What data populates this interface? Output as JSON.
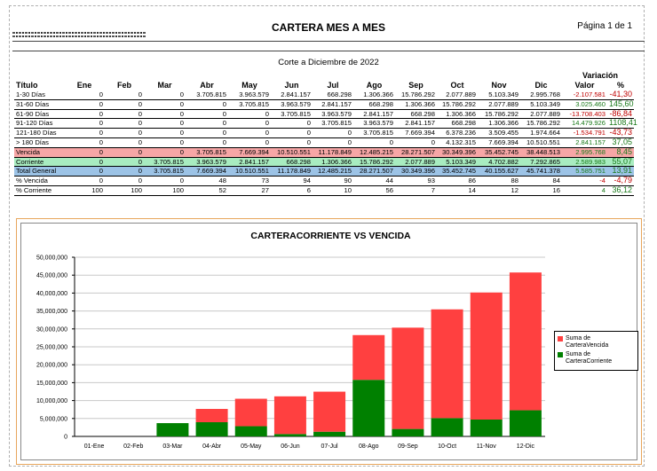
{
  "header": {
    "company_line1": "",
    "company_line2": "",
    "title": "CARTERA MES A MES",
    "page": "Página 1 de 1",
    "subtitle": "Corte a Diciembre de 2022"
  },
  "table": {
    "columns": [
      "Título",
      "Ene",
      "Feb",
      "Mar",
      "Abr",
      "May",
      "Jun",
      "Jul",
      "Ago",
      "Sep",
      "Oct",
      "Nov",
      "Dic",
      "Valor",
      "%"
    ],
    "variation_label": "Variación",
    "rows": [
      {
        "label": "1-30 Días",
        "cells": [
          "0",
          "0",
          "0",
          "3.705.815",
          "3.963.579",
          "2.841.157",
          "668.298",
          "1.306.366",
          "15.786.292",
          "2.077.889",
          "5.103.349",
          "2.995.768",
          "-2.107.581",
          "-41,30"
        ],
        "sign": "neg"
      },
      {
        "label": "31-60 Días",
        "cells": [
          "0",
          "0",
          "0",
          "0",
          "3.705.815",
          "3.963.579",
          "2.841.157",
          "668.298",
          "1.306.366",
          "15.786.292",
          "2.077.889",
          "5.103.349",
          "3.025.460",
          "145,60"
        ],
        "sign": "pos"
      },
      {
        "label": "61-90 Días",
        "cells": [
          "0",
          "0",
          "0",
          "0",
          "0",
          "3.705.815",
          "3.963.579",
          "2.841.157",
          "668.298",
          "1.306.366",
          "15.786.292",
          "2.077.889",
          "-13.708.403",
          "-86,84"
        ],
        "sign": "neg"
      },
      {
        "label": "91-120 Días",
        "cells": [
          "0",
          "0",
          "0",
          "0",
          "0",
          "0",
          "3.705.815",
          "3.963.579",
          "2.841.157",
          "668.298",
          "1.306.366",
          "15.786.292",
          "14.479.926",
          "1108,41"
        ],
        "sign": "pos"
      },
      {
        "label": "121-180 Días",
        "cells": [
          "0",
          "0",
          "0",
          "0",
          "0",
          "0",
          "0",
          "3.705.815",
          "7.669.394",
          "6.378.236",
          "3.509.455",
          "1.974.664",
          "-1.534.791",
          "-43,73"
        ],
        "sign": "neg"
      },
      {
        "label": "> 180 Días",
        "cells": [
          "0",
          "0",
          "0",
          "0",
          "0",
          "0",
          "0",
          "0",
          "0",
          "4.132.315",
          "7.669.394",
          "10.510.551",
          "2.841.157",
          "37,05"
        ],
        "sign": "pos"
      },
      {
        "label": "Vencida",
        "cells": [
          "0",
          "0",
          "0",
          "3.705.815",
          "7.669.394",
          "10.510.551",
          "11.178.849",
          "12.485.215",
          "28.271.507",
          "30.349.396",
          "35.452.745",
          "38.448.513",
          "2.995.768",
          "8,45"
        ],
        "sign": "pos",
        "cls": "r-venc"
      },
      {
        "label": "Corriente",
        "cells": [
          "0",
          "0",
          "3.705.815",
          "3.963.579",
          "2.841.157",
          "668.298",
          "1.306.366",
          "15.786.292",
          "2.077.889",
          "5.103.349",
          "4.702.882",
          "7.292.865",
          "2.589.983",
          "55,07"
        ],
        "sign": "pos",
        "cls": "r-corr"
      },
      {
        "label": "Total General",
        "cells": [
          "0",
          "0",
          "3.705.815",
          "7.669.394",
          "10.510.551",
          "11.178.849",
          "12.485.215",
          "28.271.507",
          "30.349.396",
          "35.452.745",
          "40.155.627",
          "45.741.378",
          "5.585.751",
          "13,91"
        ],
        "sign": "pos",
        "cls": "r-total"
      },
      {
        "label": "% Vencida",
        "cells": [
          "0",
          "0",
          "0",
          "48",
          "73",
          "94",
          "90",
          "44",
          "93",
          "86",
          "88",
          "84",
          "-4",
          "-4,79"
        ],
        "sign": "neg"
      },
      {
        "label": "% Corriente",
        "cells": [
          "100",
          "100",
          "100",
          "52",
          "27",
          "6",
          "10",
          "56",
          "7",
          "14",
          "12",
          "16",
          "4",
          "36,12"
        ],
        "sign": "pos"
      }
    ]
  },
  "chart_data": {
    "type": "bar",
    "stacked": true,
    "title": "CARTERACORRIENTE VS VENCIDA",
    "categories": [
      "01-Ene",
      "02-Feb",
      "03-Mar",
      "04-Abr",
      "05-May",
      "06-Jun",
      "07-Jul",
      "08-Ago",
      "09-Sep",
      "10-Oct",
      "11-Nov",
      "12-Dic"
    ],
    "series": [
      {
        "name": "Suma de CarteraCorriente",
        "color": "#008000",
        "values": [
          0,
          0,
          3705815,
          3963579,
          2841157,
          668298,
          1306366,
          15786292,
          2077889,
          5103349,
          4702882,
          7292865
        ]
      },
      {
        "name": "Suma de CarteraVencida",
        "color": "#ff4040",
        "values": [
          0,
          0,
          0,
          3705815,
          7669394,
          10510551,
          11178849,
          12485215,
          28271507,
          30349396,
          35452745,
          38448513
        ]
      }
    ],
    "ylim": [
      0,
      50000000
    ],
    "yticks": [
      "0",
      "5,000,000",
      "10,000,000",
      "15,000,000",
      "20,000,000",
      "25,000,000",
      "30,000,000",
      "35,000,000",
      "40,000,000",
      "45,000,000",
      "50,000,000"
    ],
    "legend": [
      "Suma de CarteraVencida",
      "Suma de CarteraCorriente"
    ],
    "legend_position": "right"
  }
}
